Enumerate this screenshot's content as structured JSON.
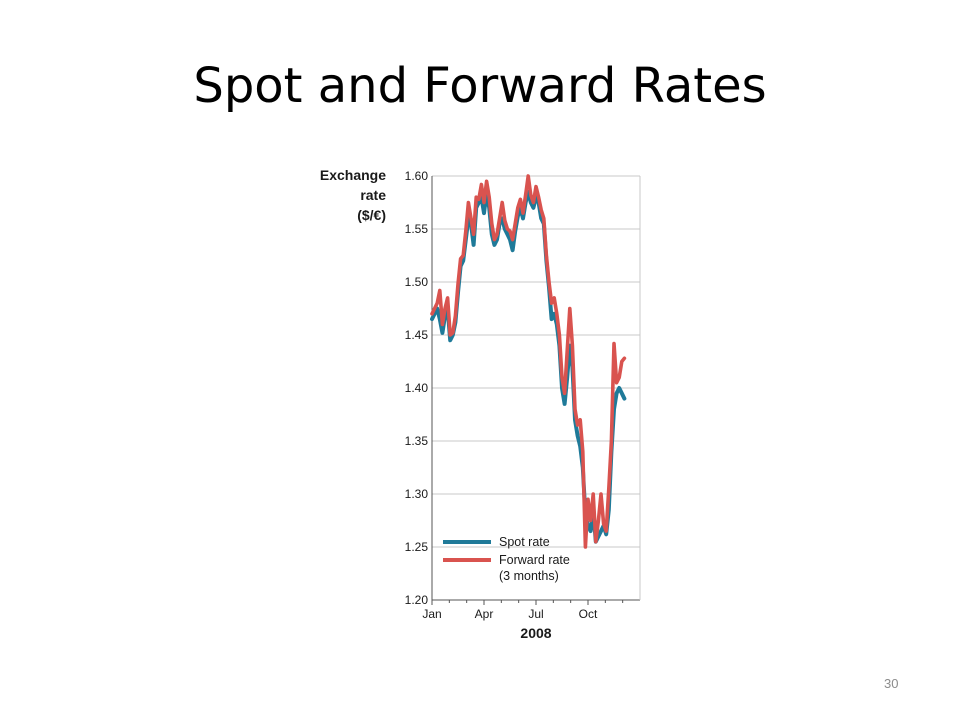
{
  "slide": {
    "title": "Spot and Forward Rates",
    "page_number": "30"
  },
  "chart_data": {
    "type": "line",
    "ylabel_lines": [
      "Exchange",
      "rate",
      "($/€)"
    ],
    "xlabel": "2008",
    "ylim": [
      1.2,
      1.6
    ],
    "yticks": [
      1.2,
      1.25,
      1.3,
      1.35,
      1.4,
      1.45,
      1.5,
      1.55,
      1.6
    ],
    "ytick_labels": [
      "1.20",
      "1.25",
      "1.30",
      "1.35",
      "1.40",
      "1.45",
      "1.50",
      "1.55",
      "1.60"
    ],
    "xlim": [
      0,
      12
    ],
    "xticks": [
      0,
      3,
      6,
      9
    ],
    "xtick_labels": [
      "Jan",
      "Apr",
      "Jul",
      "Oct"
    ],
    "grid": true,
    "legend_position": "bottom-right",
    "colors": {
      "spot": "#1f7a99",
      "forward": "#d9534f",
      "grid": "#c8c8c8",
      "axis": "#555555"
    },
    "series": [
      {
        "name": "Spot rate",
        "values": [
          [
            0.0,
            1.465
          ],
          [
            0.15,
            1.47
          ],
          [
            0.3,
            1.475
          ],
          [
            0.45,
            1.465
          ],
          [
            0.6,
            1.452
          ],
          [
            0.75,
            1.468
          ],
          [
            0.9,
            1.475
          ],
          [
            1.05,
            1.445
          ],
          [
            1.2,
            1.45
          ],
          [
            1.35,
            1.462
          ],
          [
            1.5,
            1.49
          ],
          [
            1.65,
            1.515
          ],
          [
            1.8,
            1.52
          ],
          [
            1.95,
            1.54
          ],
          [
            2.1,
            1.56
          ],
          [
            2.25,
            1.555
          ],
          [
            2.4,
            1.535
          ],
          [
            2.55,
            1.57
          ],
          [
            2.7,
            1.575
          ],
          [
            2.85,
            1.58
          ],
          [
            3.0,
            1.565
          ],
          [
            3.15,
            1.585
          ],
          [
            3.3,
            1.57
          ],
          [
            3.45,
            1.545
          ],
          [
            3.6,
            1.535
          ],
          [
            3.75,
            1.54
          ],
          [
            3.9,
            1.555
          ],
          [
            4.05,
            1.56
          ],
          [
            4.2,
            1.55
          ],
          [
            4.35,
            1.545
          ],
          [
            4.5,
            1.54
          ],
          [
            4.65,
            1.53
          ],
          [
            4.8,
            1.548
          ],
          [
            4.95,
            1.562
          ],
          [
            5.1,
            1.57
          ],
          [
            5.25,
            1.56
          ],
          [
            5.4,
            1.575
          ],
          [
            5.55,
            1.585
          ],
          [
            5.7,
            1.575
          ],
          [
            5.85,
            1.57
          ],
          [
            6.0,
            1.58
          ],
          [
            6.15,
            1.575
          ],
          [
            6.3,
            1.56
          ],
          [
            6.45,
            1.555
          ],
          [
            6.6,
            1.52
          ],
          [
            6.75,
            1.495
          ],
          [
            6.9,
            1.465
          ],
          [
            7.05,
            1.47
          ],
          [
            7.2,
            1.46
          ],
          [
            7.35,
            1.44
          ],
          [
            7.5,
            1.4
          ],
          [
            7.65,
            1.385
          ],
          [
            7.8,
            1.41
          ],
          [
            7.95,
            1.44
          ],
          [
            8.1,
            1.42
          ],
          [
            8.25,
            1.37
          ],
          [
            8.4,
            1.355
          ],
          [
            8.55,
            1.345
          ],
          [
            8.7,
            1.325
          ],
          [
            8.85,
            1.28
          ],
          [
            9.0,
            1.27
          ],
          [
            9.15,
            1.265
          ],
          [
            9.3,
            1.285
          ],
          [
            9.45,
            1.255
          ],
          [
            9.6,
            1.26
          ],
          [
            9.75,
            1.265
          ],
          [
            9.9,
            1.27
          ],
          [
            10.05,
            1.262
          ],
          [
            10.2,
            1.285
          ],
          [
            10.35,
            1.34
          ],
          [
            10.5,
            1.38
          ],
          [
            10.65,
            1.395
          ],
          [
            10.8,
            1.4
          ],
          [
            10.95,
            1.395
          ],
          [
            11.1,
            1.39
          ]
        ]
      },
      {
        "name": "Forward rate",
        "subtitle": "(3 months)",
        "values": [
          [
            0.0,
            1.47
          ],
          [
            0.15,
            1.475
          ],
          [
            0.3,
            1.48
          ],
          [
            0.45,
            1.492
          ],
          [
            0.6,
            1.46
          ],
          [
            0.75,
            1.475
          ],
          [
            0.9,
            1.485
          ],
          [
            1.05,
            1.45
          ],
          [
            1.2,
            1.452
          ],
          [
            1.35,
            1.468
          ],
          [
            1.5,
            1.498
          ],
          [
            1.65,
            1.522
          ],
          [
            1.8,
            1.525
          ],
          [
            1.95,
            1.548
          ],
          [
            2.1,
            1.575
          ],
          [
            2.25,
            1.56
          ],
          [
            2.4,
            1.545
          ],
          [
            2.55,
            1.58
          ],
          [
            2.7,
            1.578
          ],
          [
            2.85,
            1.592
          ],
          [
            3.0,
            1.575
          ],
          [
            3.15,
            1.595
          ],
          [
            3.3,
            1.58
          ],
          [
            3.45,
            1.555
          ],
          [
            3.6,
            1.54
          ],
          [
            3.75,
            1.545
          ],
          [
            3.9,
            1.56
          ],
          [
            4.05,
            1.575
          ],
          [
            4.2,
            1.558
          ],
          [
            4.35,
            1.55
          ],
          [
            4.5,
            1.548
          ],
          [
            4.65,
            1.54
          ],
          [
            4.8,
            1.555
          ],
          [
            4.95,
            1.57
          ],
          [
            5.1,
            1.578
          ],
          [
            5.25,
            1.565
          ],
          [
            5.4,
            1.582
          ],
          [
            5.55,
            1.6
          ],
          [
            5.7,
            1.582
          ],
          [
            5.85,
            1.575
          ],
          [
            6.0,
            1.59
          ],
          [
            6.15,
            1.58
          ],
          [
            6.3,
            1.568
          ],
          [
            6.45,
            1.56
          ],
          [
            6.6,
            1.525
          ],
          [
            6.75,
            1.5
          ],
          [
            6.9,
            1.48
          ],
          [
            7.05,
            1.485
          ],
          [
            7.2,
            1.47
          ],
          [
            7.35,
            1.45
          ],
          [
            7.5,
            1.41
          ],
          [
            7.65,
            1.395
          ],
          [
            7.8,
            1.435
          ],
          [
            7.95,
            1.475
          ],
          [
            8.1,
            1.44
          ],
          [
            8.25,
            1.38
          ],
          [
            8.4,
            1.365
          ],
          [
            8.55,
            1.37
          ],
          [
            8.7,
            1.34
          ],
          [
            8.85,
            1.25
          ],
          [
            9.0,
            1.295
          ],
          [
            9.15,
            1.275
          ],
          [
            9.3,
            1.3
          ],
          [
            9.45,
            1.255
          ],
          [
            9.6,
            1.275
          ],
          [
            9.75,
            1.3
          ],
          [
            9.9,
            1.272
          ],
          [
            10.05,
            1.265
          ],
          [
            10.2,
            1.305
          ],
          [
            10.35,
            1.35
          ],
          [
            10.5,
            1.442
          ],
          [
            10.65,
            1.405
          ],
          [
            10.8,
            1.41
          ],
          [
            10.95,
            1.425
          ],
          [
            11.1,
            1.428
          ]
        ]
      }
    ]
  }
}
